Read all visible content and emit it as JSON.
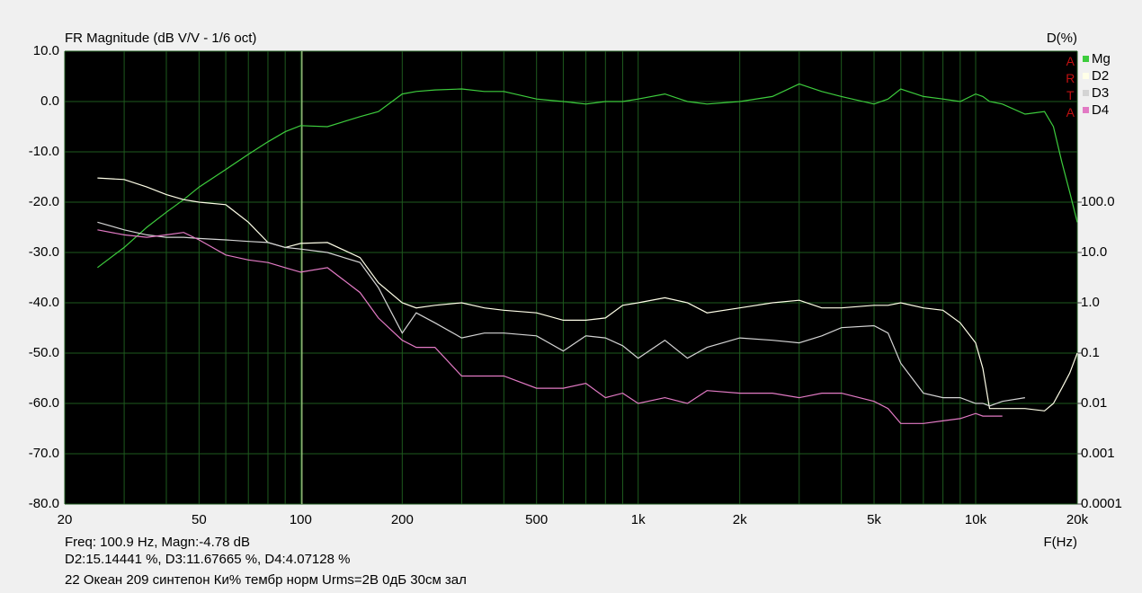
{
  "chart_data": {
    "type": "line",
    "title": "FR Magnitude (dB V/V - 1/6 oct)",
    "y2_label": "D(%)",
    "x_label": "F(Hz)",
    "watermark": "ARTA",
    "annotations": [
      "Freq: 100.9 Hz, Magn:-4.78 dB",
      "D2:15.14441 %, D3:11.67665 %, D4:4.07128 %",
      "22 Океан 209 синтепон Ки% тембр норм Urms=2В 0дБ 30см зал"
    ],
    "cursor_x": 100.9,
    "xscale": "log",
    "y2scale": "log",
    "xlim": [
      20,
      20000
    ],
    "xticks": [
      20,
      50,
      100,
      200,
      500,
      {
        "value": 1000,
        "label": "1k"
      },
      {
        "value": 2000,
        "label": "2k"
      },
      {
        "value": 5000,
        "label": "5k"
      },
      {
        "value": 10000,
        "label": "10k"
      },
      {
        "value": 20000,
        "label": "20k"
      }
    ],
    "x_minor_ticks": [
      30,
      40,
      60,
      70,
      80,
      90,
      300,
      400,
      600,
      700,
      800,
      900,
      3000,
      4000,
      6000,
      7000,
      8000,
      9000
    ],
    "ylim": [
      -80,
      10
    ],
    "yticks": [
      {
        "value": 10,
        "label": "10.0"
      },
      {
        "value": 0,
        "label": "0.0"
      },
      {
        "value": -10,
        "label": "-10.0"
      },
      {
        "value": -20,
        "label": "-20.0"
      },
      {
        "value": -30,
        "label": "-30.0"
      },
      {
        "value": -40,
        "label": "-40.0"
      },
      {
        "value": -50,
        "label": "-50.0"
      },
      {
        "value": -60,
        "label": "-60.0"
      },
      {
        "value": -70,
        "label": "-70.0"
      },
      {
        "value": -80,
        "label": "-80.0"
      }
    ],
    "y2lim": [
      0.0001,
      100000
    ],
    "y2ticks": [
      {
        "value": 100,
        "label": "100.0"
      },
      {
        "value": 10,
        "label": "10.0"
      },
      {
        "value": 1,
        "label": "1.0"
      },
      0.1,
      0.01,
      0.001,
      0.0001
    ],
    "grid": true,
    "legend": "top-right",
    "x": [
      25,
      30,
      35,
      40,
      45,
      50,
      60,
      70,
      80,
      90,
      100,
      120,
      150,
      170,
      200,
      220,
      250,
      300,
      350,
      400,
      500,
      600,
      700,
      800,
      900,
      1000,
      1200,
      1400,
      1600,
      2000,
      2500,
      3000,
      3500,
      4000,
      5000,
      5500,
      6000,
      7000,
      8000,
      9000,
      10000,
      10500,
      11000,
      12000,
      14000,
      16000,
      17000,
      18000,
      19000,
      20000
    ],
    "series": [
      {
        "name": "Mg",
        "color": "#3dcc3d",
        "values": [
          -33,
          -29,
          -25,
          -22,
          -19.5,
          -17,
          -13.5,
          -10.5,
          -8,
          -6,
          -4.78,
          -5,
          -3,
          -2,
          1.5,
          2,
          2.3,
          2.5,
          2,
          2,
          0.5,
          0,
          -0.5,
          0,
          0,
          0.5,
          1.5,
          0,
          -0.5,
          0,
          1,
          3.5,
          2,
          1,
          -0.5,
          0.5,
          2.5,
          1,
          0.5,
          0,
          1.5,
          1,
          0,
          -0.5,
          -2.5,
          -2,
          -5,
          -12,
          -18,
          -24
        ]
      },
      {
        "name": "D2",
        "color": "#ffffe8",
        "axis": "y2",
        "values": [
          302,
          282,
          200,
          141,
          112,
          100,
          89,
          40,
          15.8,
          12.6,
          15.14,
          15.8,
          7.9,
          2.5,
          1.0,
          0.79,
          0.89,
          1.0,
          0.79,
          0.71,
          0.63,
          0.45,
          0.45,
          0.5,
          0.89,
          1.0,
          1.26,
          1.0,
          0.63,
          0.79,
          1.0,
          1.12,
          0.79,
          0.79,
          0.89,
          0.89,
          1.0,
          0.79,
          0.71,
          0.4,
          0.16,
          0.05,
          0.0079,
          0.0079,
          0.0079,
          0.0071,
          0.01,
          0.02,
          0.04,
          0.1
        ]
      },
      {
        "name": "D3",
        "color": "#d4d4d4",
        "axis": "y2",
        "values": [
          40,
          28.2,
          22.4,
          20,
          20,
          19,
          17.8,
          16.6,
          15.8,
          12.6,
          11.68,
          10,
          6.3,
          2.0,
          0.25,
          0.63,
          0.4,
          0.2,
          0.25,
          0.25,
          0.22,
          0.11,
          0.22,
          0.2,
          0.14,
          0.079,
          0.18,
          0.079,
          0.13,
          0.2,
          0.18,
          0.16,
          0.22,
          0.32,
          0.35,
          0.25,
          0.063,
          0.016,
          0.013,
          0.013,
          0.01,
          0.01,
          0.0089,
          0.011,
          0.013,
          null,
          null,
          null,
          null,
          null
        ]
      },
      {
        "name": "D4",
        "color": "#e27ac4",
        "axis": "y2",
        "values": [
          28.2,
          22.4,
          20,
          22.4,
          25,
          17.8,
          8.9,
          7.1,
          6.3,
          5,
          4.07,
          5,
          1.6,
          0.5,
          0.18,
          0.13,
          0.13,
          0.035,
          0.035,
          0.035,
          0.02,
          0.02,
          0.025,
          0.013,
          0.016,
          0.01,
          0.013,
          0.01,
          0.018,
          0.016,
          0.016,
          0.013,
          0.016,
          0.016,
          0.011,
          0.0079,
          0.004,
          0.004,
          0.0045,
          0.005,
          0.0063,
          0.0056,
          0.0056,
          0.0056,
          null,
          null,
          null,
          null,
          null,
          null
        ]
      }
    ]
  }
}
